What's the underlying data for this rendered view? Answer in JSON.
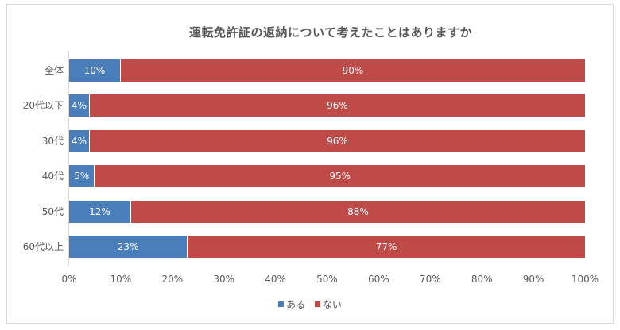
{
  "chart_data": {
    "type": "bar",
    "orientation": "horizontal",
    "stacked": true,
    "title": "運転免許証の返納について考えたことはありますか",
    "categories": [
      "全体",
      "20代以下",
      "30代",
      "40代",
      "50代",
      "60代以上"
    ],
    "series": [
      {
        "name": "ある",
        "color": "#4a7ebb",
        "values": [
          10,
          4,
          4,
          5,
          12,
          23
        ],
        "labels": [
          "10%",
          "4%",
          "4%",
          "5%",
          "12%",
          "23%"
        ]
      },
      {
        "name": "ない",
        "color": "#be4b48",
        "values": [
          90,
          96,
          96,
          95,
          88,
          77
        ],
        "labels": [
          "90%",
          "96%",
          "96%",
          "95%",
          "88%",
          "77%"
        ]
      }
    ],
    "xlabel": "",
    "ylabel": "",
    "xlim": [
      0,
      100
    ],
    "x_ticks": [
      "0%",
      "10%",
      "20%",
      "30%",
      "40%",
      "50%",
      "60%",
      "70%",
      "80%",
      "90%",
      "100%"
    ],
    "grid": false,
    "legend_position": "bottom"
  }
}
